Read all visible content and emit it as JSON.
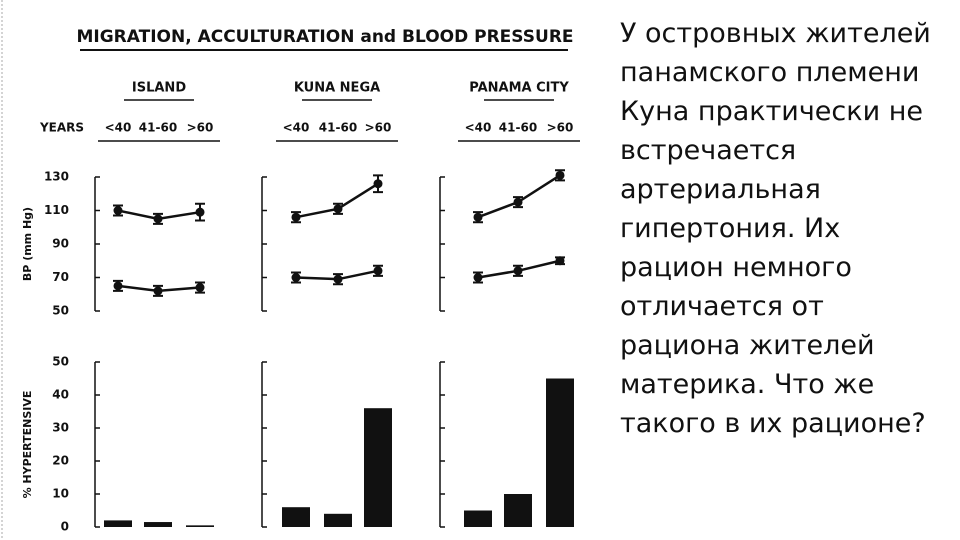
{
  "title": "MIGRATION, ACCULTURATION and BLOOD PRESSURE",
  "x_label": "YEARS",
  "groups": [
    "ISLAND",
    "KUNA NEGA",
    "PANAMA CITY"
  ],
  "chart_data": [
    {
      "type": "line",
      "ylabel": "BP (mm Hg)",
      "categories": [
        "<40",
        "41-60",
        ">60"
      ],
      "ylim": [
        50,
        130
      ],
      "yticks": [
        50,
        70,
        90,
        110,
        130
      ],
      "color": "#111111",
      "panels": [
        {
          "series": [
            {
              "values": [
                110,
                105,
                109
              ],
              "errors": [
                3,
                3,
                5
              ]
            },
            {
              "values": [
                65,
                62,
                64
              ],
              "errors": [
                3,
                3,
                3
              ]
            }
          ]
        },
        {
          "series": [
            {
              "values": [
                106,
                111,
                126
              ],
              "errors": [
                3,
                3,
                5
              ]
            },
            {
              "values": [
                70,
                69,
                74
              ],
              "errors": [
                3,
                3,
                3
              ]
            }
          ]
        },
        {
          "series": [
            {
              "values": [
                106,
                115,
                131
              ],
              "errors": [
                3,
                3,
                3
              ]
            },
            {
              "values": [
                70,
                74,
                80
              ],
              "errors": [
                3,
                3,
                2
              ]
            }
          ]
        }
      ]
    },
    {
      "type": "bar",
      "ylabel": "% HYPERTENSIVE",
      "ylim": [
        0,
        50
      ],
      "yticks": [
        0,
        10,
        20,
        30,
        40,
        50
      ],
      "color": "#111111",
      "panels": [
        {
          "values": [
            2,
            1.5,
            0.5
          ]
        },
        {
          "values": [
            6,
            4,
            36
          ]
        },
        {
          "values": [
            5,
            10,
            45
          ]
        }
      ]
    }
  ],
  "slide_text": "У островных жителей панамского племени Куна практически не встречается артериальная гипертония. Их рацион немного отличается от рациона жителей материка. Что же такого в их рационе?"
}
